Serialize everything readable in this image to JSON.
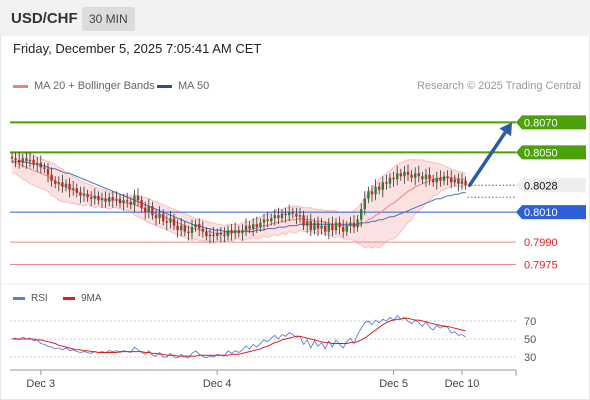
{
  "header": {
    "symbol": "USD/CHF",
    "timeframe": "30 MIN",
    "datetime": "Friday, December 5, 2025 7:05:41 AM CET"
  },
  "legend": {
    "ma20_label": "MA 20 + Bollinger Bands",
    "ma50_label": "MA 50",
    "credit": "Research © 2025 Trading Central"
  },
  "rsi_legend": {
    "rsi_label": "RSI",
    "ma9_label": "9MA"
  },
  "colors": {
    "resistance": "#4aa10a",
    "support_primary": "#2e5fd6",
    "support_secondary": "#f08a8a",
    "candle_up": "#2e7d32",
    "candle_down": "#c62828",
    "ma20": "#f08080",
    "bollinger_fill": "#fbdcdc",
    "ma50": "#4a6fb5",
    "forecast_arrow": "#2a5ca8",
    "rsi_line": "#5b7fd6",
    "rsi_ma9": "#d62020"
  },
  "chart_data": [
    {
      "type": "candlestick",
      "ylim": [
        0.7966,
        0.8085
      ],
      "levels": [
        {
          "value": 0.807,
          "label": "0.8070",
          "kind": "resistance"
        },
        {
          "value": 0.805,
          "label": "0.8050",
          "kind": "resistance"
        },
        {
          "value": 0.8028,
          "label": "0.8028",
          "kind": "current"
        },
        {
          "value": 0.801,
          "label": "0.8010",
          "kind": "support"
        },
        {
          "value": 0.799,
          "label": "0.7990",
          "kind": "support_secondary"
        },
        {
          "value": 0.7975,
          "label": "0.7975",
          "kind": "support_secondary"
        }
      ],
      "x_ticks": [
        {
          "label": "Dec 3",
          "index": 8
        },
        {
          "label": "Dec 4",
          "index": 57
        },
        {
          "label": "Dec 5",
          "index": 106
        },
        {
          "label": "Dec 10",
          "index": 125
        }
      ],
      "close": [
        0.8046,
        0.8045,
        0.8043,
        0.8046,
        0.8044,
        0.8045,
        0.8042,
        0.8043,
        0.804,
        0.8039,
        0.8035,
        0.8031,
        0.8029,
        0.803,
        0.8027,
        0.8029,
        0.8025,
        0.8026,
        0.8023,
        0.8021,
        0.8022,
        0.802,
        0.8019,
        0.8021,
        0.8018,
        0.8019,
        0.8017,
        0.802,
        0.8018,
        0.8019,
        0.8016,
        0.8018,
        0.8017,
        0.8015,
        0.8021,
        0.8018,
        0.8013,
        0.801,
        0.8014,
        0.8008,
        0.8006,
        0.8009,
        0.8004,
        0.8003,
        0.8006,
        0.8001,
        0.7998,
        0.8001,
        0.7997,
        0.7996,
        0.8,
        0.8002,
        0.7999,
        0.7997,
        0.7994,
        0.7995,
        0.7994,
        0.7996,
        0.7995,
        0.7994,
        0.7998,
        0.7996,
        0.7998,
        0.7996,
        0.7998,
        0.8001,
        0.7999,
        0.8002,
        0.8,
        0.8003,
        0.8005,
        0.8004,
        0.8006,
        0.8008,
        0.8006,
        0.8009,
        0.8008,
        0.801,
        0.8009,
        0.8007,
        0.8008,
        0.8001,
        0.8004,
        0.7998,
        0.8003,
        0.7999,
        0.8001,
        0.7997,
        0.8002,
        0.7998,
        0.8003,
        0.8,
        0.7997,
        0.8001,
        0.8003,
        0.8,
        0.8005,
        0.8012,
        0.8019,
        0.8024,
        0.8022,
        0.8027,
        0.8025,
        0.803,
        0.8029,
        0.8033,
        0.8032,
        0.8036,
        0.8034,
        0.8037,
        0.8035,
        0.8033,
        0.8036,
        0.8034,
        0.8032,
        0.8035,
        0.8032,
        0.803,
        0.8033,
        0.8031,
        0.8034,
        0.8033,
        0.803,
        0.8032,
        0.8029,
        0.8031,
        0.8028
      ],
      "ma20": [
        0.8043,
        0.8043,
        0.8042,
        0.8041,
        0.804,
        0.8039,
        0.8038,
        0.8037,
        0.8036,
        0.8035,
        0.8034,
        0.8032,
        0.8031,
        0.8029,
        0.8028,
        0.8027,
        0.8026,
        0.8025,
        0.8024,
        0.8023,
        0.8022,
        0.8022,
        0.8021,
        0.802,
        0.802,
        0.8019,
        0.8019,
        0.8018,
        0.8018,
        0.8018,
        0.8017,
        0.8017,
        0.8016,
        0.8016,
        0.8015,
        0.8014,
        0.8013,
        0.8012,
        0.8011,
        0.801,
        0.8009,
        0.8008,
        0.8007,
        0.8006,
        0.8005,
        0.8004,
        0.8003,
        0.8002,
        0.8001,
        0.8,
        0.7999,
        0.7999,
        0.7998,
        0.7998,
        0.7997,
        0.7997,
        0.7996,
        0.7996,
        0.7996,
        0.7996,
        0.7996,
        0.7996,
        0.7997,
        0.7997,
        0.7997,
        0.7998,
        0.7998,
        0.7999,
        0.7999,
        0.8,
        0.8001,
        0.8001,
        0.8002,
        0.8003,
        0.8003,
        0.8004,
        0.8004,
        0.8005,
        0.8005,
        0.8005,
        0.8006,
        0.8005,
        0.8005,
        0.8005,
        0.8004,
        0.8004,
        0.8004,
        0.8003,
        0.8003,
        0.8002,
        0.8002,
        0.8002,
        0.8001,
        0.8001,
        0.8001,
        0.8001,
        0.8001,
        0.8002,
        0.8003,
        0.8005,
        0.8006,
        0.8008,
        0.8009,
        0.8011,
        0.8013,
        0.8015,
        0.8016,
        0.8018,
        0.802,
        0.8022,
        0.8024,
        0.8025,
        0.8027,
        0.8028,
        0.8029,
        0.803,
        0.8031,
        0.8032,
        0.8032,
        0.8033,
        0.8033,
        0.8033,
        0.8033,
        0.8033,
        0.8032,
        0.8032,
        0.8032
      ],
      "bb_upper": [
        0.805,
        0.805,
        0.805,
        0.805,
        0.8049,
        0.8049,
        0.8048,
        0.8047,
        0.8046,
        0.8045,
        0.8044,
        0.8043,
        0.8042,
        0.804,
        0.8039,
        0.8037,
        0.8036,
        0.8034,
        0.8033,
        0.8031,
        0.803,
        0.8029,
        0.8028,
        0.8027,
        0.8026,
        0.8025,
        0.8025,
        0.8024,
        0.8023,
        0.8023,
        0.8022,
        0.8022,
        0.8021,
        0.8021,
        0.8022,
        0.8021,
        0.802,
        0.802,
        0.8019,
        0.8018,
        0.8017,
        0.8016,
        0.8015,
        0.8014,
        0.8013,
        0.8012,
        0.8011,
        0.801,
        0.8009,
        0.8008,
        0.8007,
        0.8006,
        0.8005,
        0.8005,
        0.8004,
        0.8003,
        0.8003,
        0.8002,
        0.8002,
        0.8001,
        0.8002,
        0.8002,
        0.8002,
        0.8002,
        0.8003,
        0.8004,
        0.8004,
        0.8005,
        0.8006,
        0.8007,
        0.8008,
        0.8009,
        0.801,
        0.8011,
        0.8012,
        0.8012,
        0.8013,
        0.8013,
        0.8014,
        0.8014,
        0.8014,
        0.8013,
        0.8013,
        0.8013,
        0.8012,
        0.8012,
        0.8012,
        0.8011,
        0.8011,
        0.8011,
        0.8011,
        0.801,
        0.801,
        0.801,
        0.801,
        0.8011,
        0.8013,
        0.8016,
        0.802,
        0.8023,
        0.8026,
        0.8029,
        0.8032,
        0.8034,
        0.8036,
        0.8038,
        0.804,
        0.8042,
        0.8043,
        0.8044,
        0.8045,
        0.8045,
        0.8045,
        0.8045,
        0.8045,
        0.8044,
        0.8044,
        0.8043,
        0.8043,
        0.8042,
        0.8041,
        0.804,
        0.8039,
        0.8038,
        0.8037,
        0.8037,
        0.8036
      ],
      "bb_lower": [
        0.8036,
        0.8036,
        0.8034,
        0.8032,
        0.8031,
        0.8029,
        0.8028,
        0.8027,
        0.8026,
        0.8025,
        0.8024,
        0.8021,
        0.802,
        0.8018,
        0.8017,
        0.8017,
        0.8016,
        0.8016,
        0.8015,
        0.8015,
        0.8014,
        0.8015,
        0.8014,
        0.8013,
        0.8014,
        0.8013,
        0.8013,
        0.8012,
        0.8013,
        0.8013,
        0.8012,
        0.8012,
        0.8011,
        0.8011,
        0.8008,
        0.8007,
        0.8006,
        0.8004,
        0.8003,
        0.8002,
        0.8001,
        0.8,
        0.7999,
        0.7998,
        0.7997,
        0.7996,
        0.7995,
        0.7994,
        0.7993,
        0.7992,
        0.7991,
        0.7992,
        0.7991,
        0.7991,
        0.799,
        0.7991,
        0.7989,
        0.799,
        0.799,
        0.7991,
        0.799,
        0.799,
        0.7992,
        0.7992,
        0.7991,
        0.7992,
        0.7992,
        0.7993,
        0.7992,
        0.7993,
        0.7994,
        0.7993,
        0.7994,
        0.7995,
        0.7994,
        0.7996,
        0.7995,
        0.7997,
        0.7996,
        0.7996,
        0.7998,
        0.7997,
        0.7997,
        0.7997,
        0.7996,
        0.7996,
        0.7996,
        0.7995,
        0.7995,
        0.7993,
        0.7993,
        0.7994,
        0.7992,
        0.7992,
        0.7992,
        0.7991,
        0.7989,
        0.7988,
        0.7986,
        0.7987,
        0.7986,
        0.7987,
        0.7986,
        0.7988,
        0.799,
        0.7992,
        0.7992,
        0.7994,
        0.7997,
        0.8,
        0.8003,
        0.8005,
        0.8009,
        0.8011,
        0.8013,
        0.8016,
        0.8018,
        0.8021,
        0.8021,
        0.8024,
        0.8025,
        0.8026,
        0.8027,
        0.8028,
        0.8027,
        0.8027,
        0.8028
      ],
      "ma50": [
        0.8044,
        0.8044,
        0.8044,
        0.8044,
        0.8043,
        0.8043,
        0.8042,
        0.8042,
        0.8041,
        0.8041,
        0.804,
        0.8039,
        0.8039,
        0.8038,
        0.8037,
        0.8036,
        0.8036,
        0.8035,
        0.8034,
        0.8033,
        0.8032,
        0.8031,
        0.803,
        0.8029,
        0.8028,
        0.8027,
        0.8026,
        0.8025,
        0.8024,
        0.8023,
        0.8022,
        0.8021,
        0.802,
        0.8019,
        0.8018,
        0.8017,
        0.8016,
        0.8015,
        0.8014,
        0.8013,
        0.8012,
        0.8011,
        0.801,
        0.8009,
        0.8008,
        0.8007,
        0.8006,
        0.8005,
        0.8004,
        0.8003,
        0.8002,
        0.8001,
        0.8001,
        0.8,
        0.7999,
        0.7999,
        0.7998,
        0.7998,
        0.7998,
        0.7997,
        0.7997,
        0.7997,
        0.7997,
        0.7997,
        0.7997,
        0.7997,
        0.7997,
        0.7997,
        0.7998,
        0.7998,
        0.7998,
        0.7999,
        0.7999,
        0.7999,
        0.8,
        0.8,
        0.8,
        0.8001,
        0.8001,
        0.8001,
        0.8002,
        0.8002,
        0.8002,
        0.8002,
        0.8002,
        0.8002,
        0.8002,
        0.8002,
        0.8002,
        0.8002,
        0.8002,
        0.8002,
        0.8002,
        0.8002,
        0.8002,
        0.8002,
        0.8002,
        0.8003,
        0.8003,
        0.8003,
        0.8004,
        0.8004,
        0.8005,
        0.8005,
        0.8006,
        0.8007,
        0.8007,
        0.8008,
        0.8009,
        0.801,
        0.8011,
        0.8012,
        0.8013,
        0.8014,
        0.8015,
        0.8016,
        0.8017,
        0.8018,
        0.8019,
        0.8019,
        0.802,
        0.8021,
        0.8021,
        0.8022,
        0.8022,
        0.8023,
        0.8023
      ],
      "forecast": {
        "from": 0.8028,
        "to": 0.807
      }
    },
    {
      "type": "line",
      "title": "RSI",
      "ylim": [
        20,
        80
      ],
      "y_ticks": [
        70,
        50,
        30
      ],
      "rsi": [
        50,
        51,
        49,
        52,
        50,
        51,
        48,
        49,
        45,
        44,
        42,
        41,
        39,
        40,
        38,
        40,
        37,
        38,
        36,
        35,
        36,
        35,
        34,
        36,
        35,
        36,
        35,
        37,
        36,
        37,
        35,
        37,
        36,
        35,
        41,
        38,
        35,
        33,
        37,
        32,
        31,
        35,
        30,
        30,
        34,
        30,
        29,
        33,
        30,
        29,
        34,
        37,
        33,
        31,
        29,
        31,
        30,
        33,
        32,
        31,
        37,
        34,
        37,
        35,
        38,
        42,
        39,
        44,
        41,
        45,
        49,
        47,
        51,
        54,
        50,
        55,
        53,
        57,
        55,
        52,
        53,
        44,
        49,
        40,
        48,
        42,
        46,
        39,
        48,
        41,
        49,
        44,
        40,
        47,
        51,
        45,
        55,
        62,
        68,
        70,
        66,
        71,
        68,
        72,
        70,
        74,
        71,
        76,
        72,
        74,
        70,
        67,
        71,
        68,
        64,
        69,
        63,
        60,
        65,
        62,
        65,
        63,
        57,
        58,
        54,
        55,
        52
      ],
      "ma9": [
        50,
        50,
        50,
        50,
        50,
        50,
        50,
        49,
        49,
        48,
        47,
        46,
        45,
        43,
        42,
        41,
        40,
        39,
        38,
        38,
        37,
        37,
        36,
        36,
        35,
        35,
        35,
        35,
        35,
        35,
        36,
        36,
        36,
        36,
        36,
        36,
        36,
        35,
        35,
        34,
        34,
        33,
        33,
        32,
        32,
        32,
        31,
        31,
        31,
        31,
        31,
        31,
        32,
        32,
        32,
        32,
        32,
        32,
        32,
        32,
        32,
        33,
        33,
        33,
        34,
        35,
        36,
        37,
        38,
        39,
        41,
        42,
        44,
        46,
        47,
        49,
        50,
        51,
        52,
        53,
        53,
        52,
        51,
        50,
        49,
        48,
        47,
        46,
        46,
        45,
        45,
        45,
        45,
        45,
        46,
        46,
        47,
        49,
        51,
        54,
        57,
        60,
        63,
        66,
        68,
        70,
        71,
        72,
        72,
        73,
        73,
        72,
        71,
        71,
        70,
        69,
        68,
        67,
        66,
        65,
        64,
        64,
        63,
        62,
        61,
        60,
        59
      ]
    }
  ]
}
